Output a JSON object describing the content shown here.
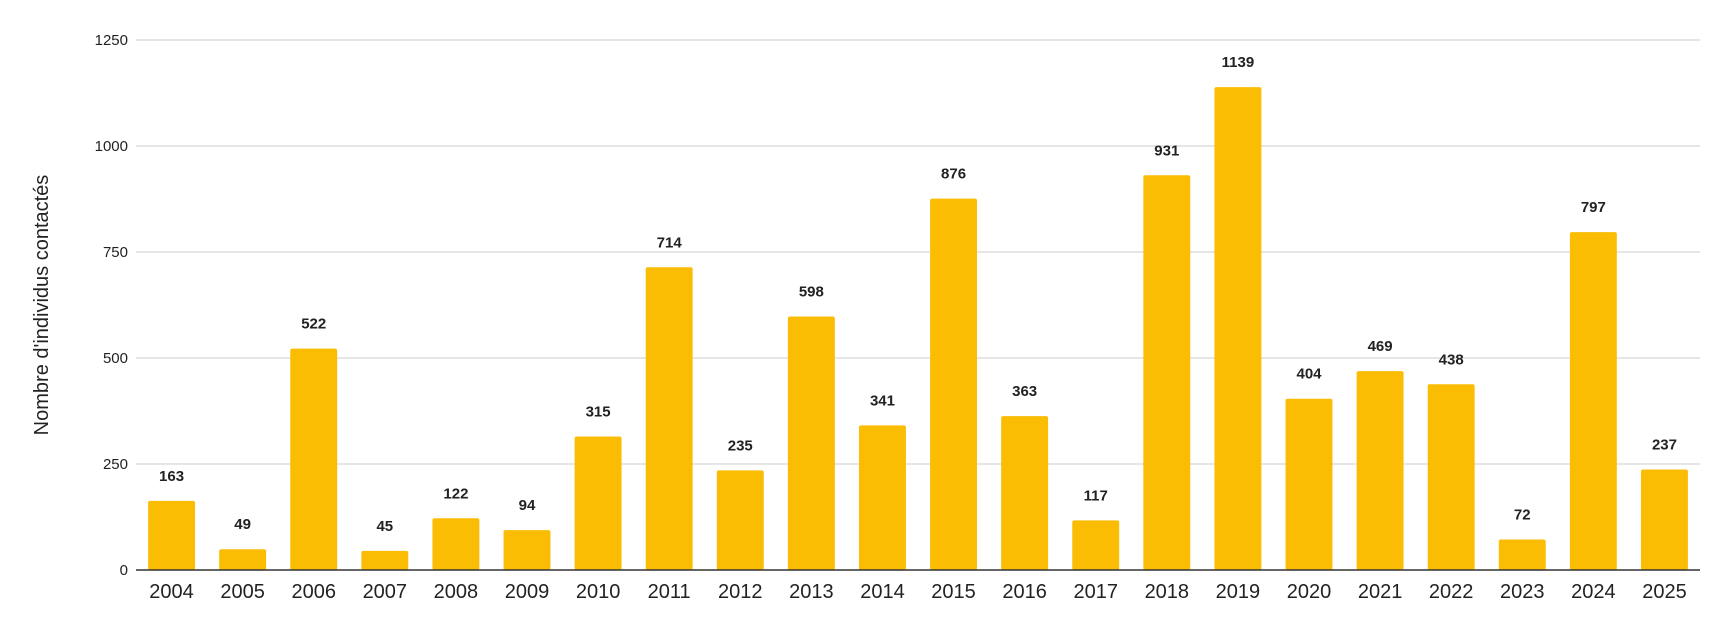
{
  "chart_data": {
    "type": "bar",
    "title": "",
    "xlabel": "",
    "ylabel": "Nombre d'individus contactés",
    "categories": [
      "2004",
      "2005",
      "2006",
      "2007",
      "2008",
      "2009",
      "2010",
      "2011",
      "2012",
      "2013",
      "2014",
      "2015",
      "2016",
      "2017",
      "2018",
      "2019",
      "2020",
      "2021",
      "2022",
      "2023",
      "2024",
      "2025"
    ],
    "values": [
      163,
      49,
      522,
      45,
      122,
      94,
      315,
      714,
      235,
      598,
      341,
      876,
      363,
      117,
      931,
      1139,
      404,
      469,
      438,
      72,
      797,
      237
    ],
    "ylim": [
      0,
      1250
    ],
    "yticks": [
      0,
      250,
      500,
      750,
      1000,
      1250
    ],
    "grid": true,
    "legend": "none",
    "data_labels": true,
    "bar_color": "#FBBC04"
  }
}
